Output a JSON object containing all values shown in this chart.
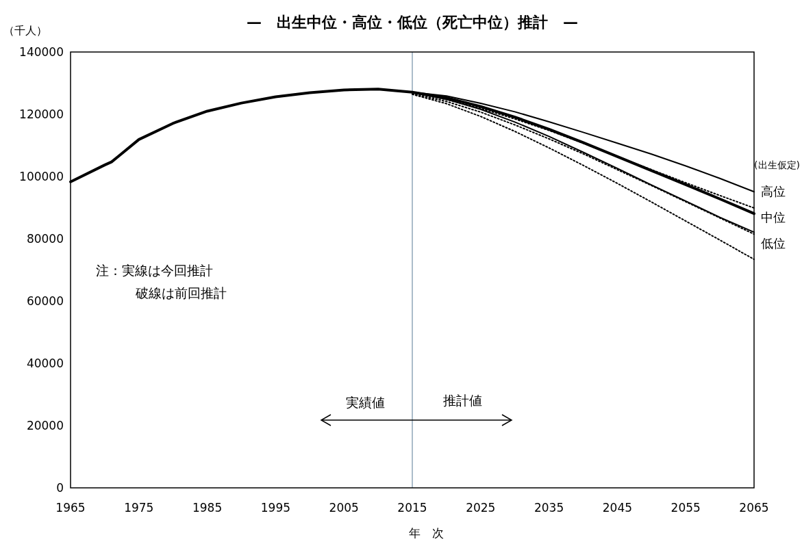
{
  "chart_data": {
    "type": "line",
    "title": "—　出生中位・高位・低位（死亡中位）推計　—",
    "xlabel": "年　次",
    "ylabel": "（千人）",
    "legend_title": "(出生仮定)",
    "xlim": [
      1965,
      2065
    ],
    "ylim": [
      0,
      140000
    ],
    "xticks": [
      1965,
      1975,
      1985,
      1995,
      2005,
      2015,
      2025,
      2035,
      2045,
      2055,
      2065
    ],
    "yticks": [
      0,
      20000,
      40000,
      60000,
      80000,
      100000,
      120000,
      140000
    ],
    "grid": false,
    "ref_lines": [
      {
        "axis": "x",
        "value": 2015,
        "color": "#8fa6b8",
        "line_style": "solid"
      }
    ],
    "annotations": [
      "注：実線は今回推計",
      "破線は前回推計",
      "実績値",
      "推計値"
    ],
    "series": [
      {
        "name": "中位",
        "color": "#000000",
        "line_style": "solid",
        "x": [
          1965,
          1970,
          1971,
          1972,
          1975,
          1980,
          1985,
          1990,
          1995,
          2000,
          2005,
          2010,
          2015,
          2020,
          2025,
          2030,
          2035,
          2040,
          2045,
          2050,
          2055,
          2060,
          2065
        ],
        "values": [
          98300,
          103700,
          104700,
          106500,
          111900,
          117100,
          121000,
          123600,
          125600,
          126900,
          127800,
          128100,
          127100,
          125300,
          122500,
          119100,
          115200,
          110900,
          106400,
          101900,
          97400,
          92800,
          88100
        ]
      },
      {
        "name": "高位",
        "color": "#000000",
        "line_style": "solid",
        "x": [
          2015,
          2020,
          2025,
          2030,
          2035,
          2040,
          2045,
          2050,
          2055,
          2060,
          2065
        ],
        "values": [
          127100,
          125900,
          123500,
          120800,
          117600,
          114200,
          110700,
          107200,
          103400,
          99400,
          95100
        ]
      },
      {
        "name": "低位",
        "color": "#000000",
        "line_style": "solid",
        "x": [
          2015,
          2020,
          2025,
          2030,
          2035,
          2040,
          2045,
          2050,
          2055,
          2060,
          2065
        ],
        "values": [
          127100,
          124800,
          121600,
          117500,
          112900,
          107800,
          102600,
          97300,
          92100,
          86900,
          82100
        ]
      },
      {
        "color": "#000000",
        "line_style": "dotted",
        "x": [
          2015,
          2020,
          2025,
          2030,
          2035,
          2040,
          2045,
          2050,
          2055,
          2060,
          2065
        ],
        "values": [
          126900,
          124700,
          121900,
          118500,
          114800,
          110700,
          106400,
          102200,
          98000,
          93900,
          89900
        ]
      },
      {
        "color": "#000000",
        "line_style": "dotted",
        "x": [
          2015,
          2020,
          2025,
          2030,
          2035,
          2040,
          2045,
          2050,
          2055,
          2060,
          2065
        ],
        "values": [
          126600,
          124100,
          120700,
          116600,
          112100,
          107300,
          102200,
          97100,
          91900,
          86700,
          81500
        ]
      },
      {
        "color": "#000000",
        "line_style": "dotted",
        "x": [
          2015,
          2020,
          2025,
          2030,
          2035,
          2040,
          2045,
          2050,
          2055,
          2060,
          2065
        ],
        "values": [
          126400,
          123400,
          119300,
          114500,
          109200,
          103600,
          97800,
          91800,
          85700,
          79600,
          73400
        ]
      }
    ]
  }
}
